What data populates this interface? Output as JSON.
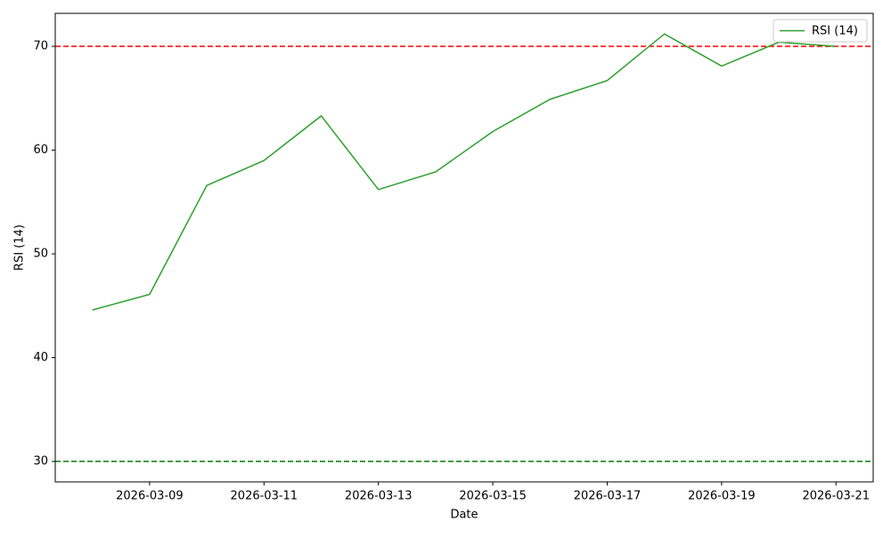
{
  "chart_data": {
    "type": "line",
    "xlabel": "Date",
    "ylabel": "RSI (14)",
    "x": [
      "2026-03-08",
      "2026-03-09",
      "2026-03-10",
      "2026-03-11",
      "2026-03-12",
      "2026-03-13",
      "2026-03-14",
      "2026-03-15",
      "2026-03-16",
      "2026-03-17",
      "2026-03-18",
      "2026-03-19",
      "2026-03-20",
      "2026-03-21"
    ],
    "series": [
      {
        "name": "RSI (14)",
        "color": "#2ca02c",
        "values": [
          44.6,
          46.1,
          56.6,
          59.0,
          63.3,
          56.2,
          57.9,
          61.8,
          64.9,
          66.7,
          71.2,
          68.1,
          70.4,
          70.0
        ]
      }
    ],
    "hlines": [
      {
        "value": 70,
        "color": "#ff0000"
      },
      {
        "value": 30,
        "color": "#008000"
      }
    ],
    "xlim": [
      "2026-03-07T08:24",
      "2026-03-21T15:36"
    ],
    "xticks": [
      "2026-03-09",
      "2026-03-11",
      "2026-03-13",
      "2026-03-15",
      "2026-03-17",
      "2026-03-19",
      "2026-03-21"
    ],
    "ylim": [
      28.03,
      73.18
    ],
    "yticks": [
      30,
      40,
      50,
      60,
      70
    ],
    "legend": "upper right"
  }
}
